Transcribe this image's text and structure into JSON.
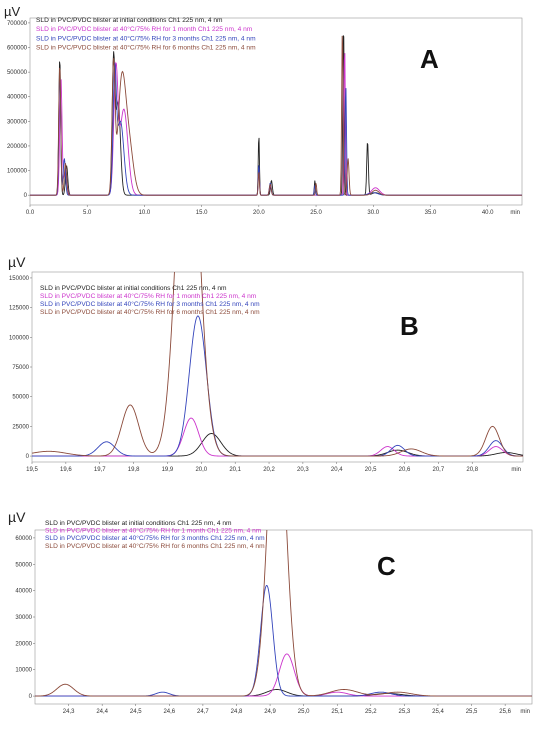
{
  "chart_data": [
    {
      "type": "line",
      "panel_label": "A",
      "ylabel": "µV",
      "xlabel": "min",
      "xlim": [
        0,
        43
      ],
      "ylim": [
        -40000,
        720000
      ],
      "x_ticks": [
        0.0,
        5.0,
        10.0,
        15.0,
        20.0,
        25.0,
        30.0,
        35.0,
        40.0
      ],
      "x_tick_labels": [
        "0.0",
        "5.0",
        "10.0",
        "15.0",
        "20.0",
        "25.0",
        "30.0",
        "35.0",
        "40.0"
      ],
      "y_ticks": [
        0,
        100000,
        200000,
        300000,
        400000,
        500000,
        600000,
        700000
      ],
      "y_tick_labels": [
        "0",
        "100000",
        "200000",
        "300000",
        "400000",
        "500000",
        "600000",
        "700000"
      ],
      "legend_position": "top-left",
      "series": [
        {
          "name": "SLD in PVC/PVDC blister at initial conditions Ch1 225 nm, 4 nm",
          "color": "#222222",
          "peaks": [
            [
              2.6,
              560000,
              0.08
            ],
            [
              3.2,
              120000,
              0.1
            ],
            [
              7.3,
              530000,
              0.12
            ],
            [
              7.7,
              380000,
              0.2
            ],
            [
              20.0,
              250000,
              0.05
            ],
            [
              21.1,
              60000,
              0.08
            ],
            [
              24.9,
              60000,
              0.05
            ],
            [
              27.4,
              700000,
              0.06
            ],
            [
              29.5,
              220000,
              0.07
            ],
            [
              30.2,
              10000,
              0.3
            ]
          ]
        },
        {
          "name": "SLD in PVC/PVDC blister at 40°C/75% RH for 1 month Ch1 225 nm, 4 nm",
          "color": "#cc33cc",
          "peaks": [
            [
              2.7,
              480000,
              0.1
            ],
            [
              3.1,
              100000,
              0.12
            ],
            [
              7.5,
              490000,
              0.18
            ],
            [
              8.2,
              350000,
              0.35
            ],
            [
              20.0,
              120000,
              0.05
            ],
            [
              21.0,
              40000,
              0.08
            ],
            [
              27.5,
              610000,
              0.06
            ],
            [
              30.2,
              30000,
              0.35
            ]
          ]
        },
        {
          "name": "SLD in PVC/PVDC blister at 40°C/75% RH for 3 months Ch1 225 nm, 4 nm",
          "color": "#3344bb",
          "peaks": [
            [
              2.6,
              510000,
              0.08
            ],
            [
              3.0,
              150000,
              0.1
            ],
            [
              7.4,
              460000,
              0.14
            ],
            [
              7.9,
              300000,
              0.3
            ],
            [
              20.0,
              130000,
              0.05
            ],
            [
              21.0,
              50000,
              0.08
            ],
            [
              24.9,
              40000,
              0.05
            ],
            [
              27.6,
              450000,
              0.06
            ],
            [
              30.0,
              10000,
              0.4
            ]
          ]
        },
        {
          "name": "SLD in PVC/PVDC blister at 40°C/75% RH for 6 months Ch1 225 nm, 4 nm",
          "color": "#8b4a3a",
          "peaks": [
            [
              2.6,
              530000,
              0.09
            ],
            [
              3.1,
              130000,
              0.1
            ],
            [
              7.3,
              510000,
              0.13
            ],
            [
              8.0,
              420000,
              0.33
            ],
            [
              8.6,
              220000,
              0.4
            ],
            [
              20.0,
              100000,
              0.05
            ],
            [
              21.0,
              45000,
              0.08
            ],
            [
              25.0,
              50000,
              0.05
            ],
            [
              27.3,
              680000,
              0.06
            ],
            [
              27.8,
              150000,
              0.08
            ],
            [
              30.2,
              20000,
              0.3
            ]
          ]
        }
      ]
    },
    {
      "type": "line",
      "panel_label": "B",
      "ylabel": "µV",
      "xlabel": "min",
      "xlim": [
        19.5,
        20.95
      ],
      "ylim": [
        -5000,
        155000
      ],
      "x_ticks": [
        19.5,
        19.6,
        19.7,
        19.8,
        19.9,
        20.0,
        20.1,
        20.2,
        20.3,
        20.4,
        20.5,
        20.6,
        20.7,
        20.8
      ],
      "x_tick_labels": [
        "19,5",
        "19,6",
        "19,7",
        "19,8",
        "19,9",
        "20,0",
        "20,1",
        "20,2",
        "20,3",
        "20,4",
        "20,5",
        "20,6",
        "20,7",
        "20,8"
      ],
      "y_ticks": [
        0,
        25000,
        50000,
        75000,
        100000,
        125000,
        150000
      ],
      "y_tick_labels": [
        "0",
        "25000",
        "50000",
        "75000",
        "100000",
        "125000",
        "150000"
      ],
      "legend_position": "top-left",
      "series": [
        {
          "name": "SLD in PVC/PVDC blister at initial conditions Ch1 225 nm, 4 nm",
          "color": "#222222",
          "peaks": [
            [
              20.03,
              19000,
              0.028
            ],
            [
              20.58,
              5000,
              0.03
            ],
            [
              20.9,
              3000,
              0.03
            ]
          ]
        },
        {
          "name": "SLD in PVC/PVDC blister at 40°C/75% RH for 1 month Ch1 225 nm, 4 nm",
          "color": "#cc33cc",
          "peaks": [
            [
              19.97,
              32000,
              0.022
            ],
            [
              20.55,
              8000,
              0.02
            ],
            [
              20.87,
              8000,
              0.02
            ]
          ]
        },
        {
          "name": "SLD in PVC/PVDC blister at 40°C/75% RH for 3 months Ch1 225 nm, 4 nm",
          "color": "#3344bb",
          "peaks": [
            [
              19.72,
              12000,
              0.025
            ],
            [
              19.99,
              118000,
              0.025
            ],
            [
              20.58,
              9000,
              0.02
            ],
            [
              20.87,
              13000,
              0.02
            ]
          ]
        },
        {
          "name": "SLD in PVC/PVDC blister at 40°C/75% RH for 6 months Ch1 225 nm, 4 nm",
          "color": "#8b4a3a",
          "peaks": [
            [
              19.55,
              4000,
              0.05
            ],
            [
              19.79,
              43000,
              0.025
            ],
            [
              19.96,
              330000,
              0.032
            ],
            [
              20.62,
              6000,
              0.03
            ],
            [
              20.86,
              25000,
              0.02
            ]
          ]
        }
      ]
    },
    {
      "type": "line",
      "panel_label": "C",
      "ylabel": "µV",
      "xlabel": "min",
      "xlim": [
        24.2,
        25.68
      ],
      "ylim": [
        -3000,
        63000
      ],
      "x_ticks": [
        24.3,
        24.4,
        24.5,
        24.6,
        24.7,
        24.8,
        24.9,
        25.0,
        25.1,
        25.2,
        25.3,
        25.4,
        25.5,
        25.6
      ],
      "x_tick_labels": [
        "24,3",
        "24,4",
        "24,5",
        "24,6",
        "24,7",
        "24,8",
        "24,9",
        "25,0",
        "25,1",
        "25,2",
        "25,3",
        "25,4",
        "25,5",
        "25,6"
      ],
      "y_ticks": [
        0,
        10000,
        20000,
        30000,
        40000,
        50000,
        60000
      ],
      "y_tick_labels": [
        "0",
        "10000",
        "20000",
        "30000",
        "40000",
        "50000",
        "60000"
      ],
      "legend_position": "top-left",
      "series": [
        {
          "name": "SLD in PVC/PVDC blister at initial conditions Ch1 225 nm, 4 nm",
          "color": "#222222",
          "peaks": [
            [
              24.92,
              2500,
              0.03
            ],
            [
              25.25,
              1000,
              0.04
            ]
          ]
        },
        {
          "name": "SLD in PVC/PVDC blister at 40°C/75% RH for 1 month Ch1 225 nm, 4 nm",
          "color": "#cc33cc",
          "peaks": [
            [
              24.95,
              16000,
              0.022
            ],
            [
              25.1,
              1500,
              0.03
            ]
          ]
        },
        {
          "name": "SLD in PVC/PVDC blister at 40°C/75% RH for 3 months Ch1 225 nm, 4 nm",
          "color": "#3344bb",
          "peaks": [
            [
              24.58,
              1500,
              0.02
            ],
            [
              24.89,
              42000,
              0.018
            ],
            [
              25.23,
              1500,
              0.03
            ]
          ]
        },
        {
          "name": "SLD in PVC/PVDC blister at 40°C/75% RH for 6 months Ch1 225 nm, 4 nm",
          "color": "#8b4a3a",
          "peaks": [
            [
              24.29,
              4500,
              0.025
            ],
            [
              24.92,
              120000,
              0.026
            ],
            [
              25.12,
              2500,
              0.04
            ],
            [
              25.28,
              1500,
              0.04
            ]
          ]
        }
      ]
    }
  ]
}
